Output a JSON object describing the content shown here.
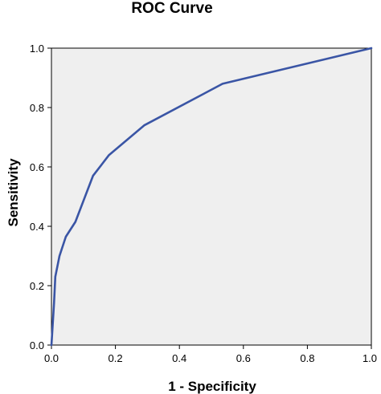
{
  "chart_data": {
    "type": "line",
    "title": "ROC Curve",
    "xlabel": "1 - Specificity",
    "ylabel": "Sensitivity",
    "xlim": [
      0,
      1
    ],
    "ylim": [
      0,
      1
    ],
    "x_ticks": [
      "0.0",
      "0.2",
      "0.4",
      "0.6",
      "0.8",
      "1.0"
    ],
    "y_ticks": [
      "0.0",
      "0.2",
      "0.4",
      "0.6",
      "0.8",
      "1.0"
    ],
    "grid": false,
    "legend": "none",
    "colors": {
      "plot_background": "#efefef",
      "curve": "#3a55a5",
      "axis": "#000000"
    },
    "series": [
      {
        "x": [
          0.0,
          0.008,
          0.012,
          0.025,
          0.045,
          0.075,
          0.13,
          0.18,
          0.29,
          0.535,
          1.0
        ],
        "y": [
          0.0,
          0.14,
          0.23,
          0.3,
          0.365,
          0.415,
          0.57,
          0.64,
          0.74,
          0.88,
          1.0
        ]
      }
    ]
  }
}
